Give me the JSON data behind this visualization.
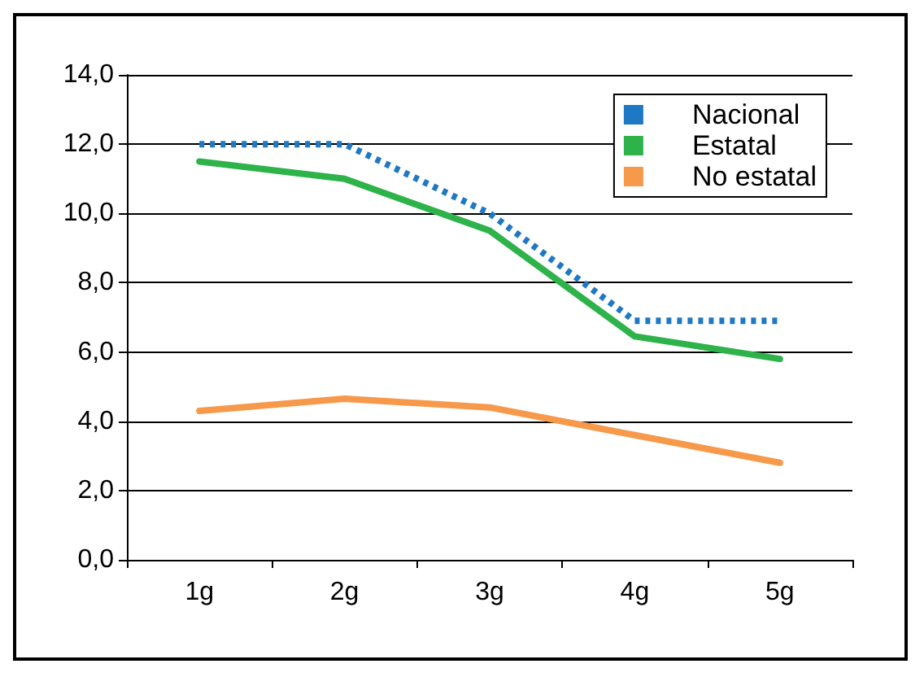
{
  "chart_data": {
    "type": "line",
    "categories": [
      "1g",
      "2g",
      "3g",
      "4g",
      "5g"
    ],
    "series": [
      {
        "name": "Nacional",
        "color": "#1f78c4",
        "line_style": "dashed",
        "values": [
          12.0,
          12.0,
          10.0,
          6.9,
          6.9
        ]
      },
      {
        "name": "Estatal",
        "color": "#2db34a",
        "line_style": "solid",
        "values": [
          11.5,
          11.0,
          9.5,
          6.45,
          5.8
        ]
      },
      {
        "name": "No estatal",
        "color": "#f7994a",
        "line_style": "solid",
        "values": [
          4.3,
          4.65,
          4.4,
          3.6,
          2.8
        ]
      }
    ],
    "ylim": [
      0,
      14
    ],
    "yticks": [
      {
        "value": 0,
        "label": "0,0"
      },
      {
        "value": 2,
        "label": "2,0"
      },
      {
        "value": 4,
        "label": "4,0"
      },
      {
        "value": 6,
        "label": "6,0"
      },
      {
        "value": 8,
        "label": "8,0"
      },
      {
        "value": 10,
        "label": "10,0"
      },
      {
        "value": 12,
        "label": "12,0"
      },
      {
        "value": 14,
        "label": "14,0"
      }
    ],
    "grid": "y",
    "legend": "top right",
    "marker": "none"
  }
}
